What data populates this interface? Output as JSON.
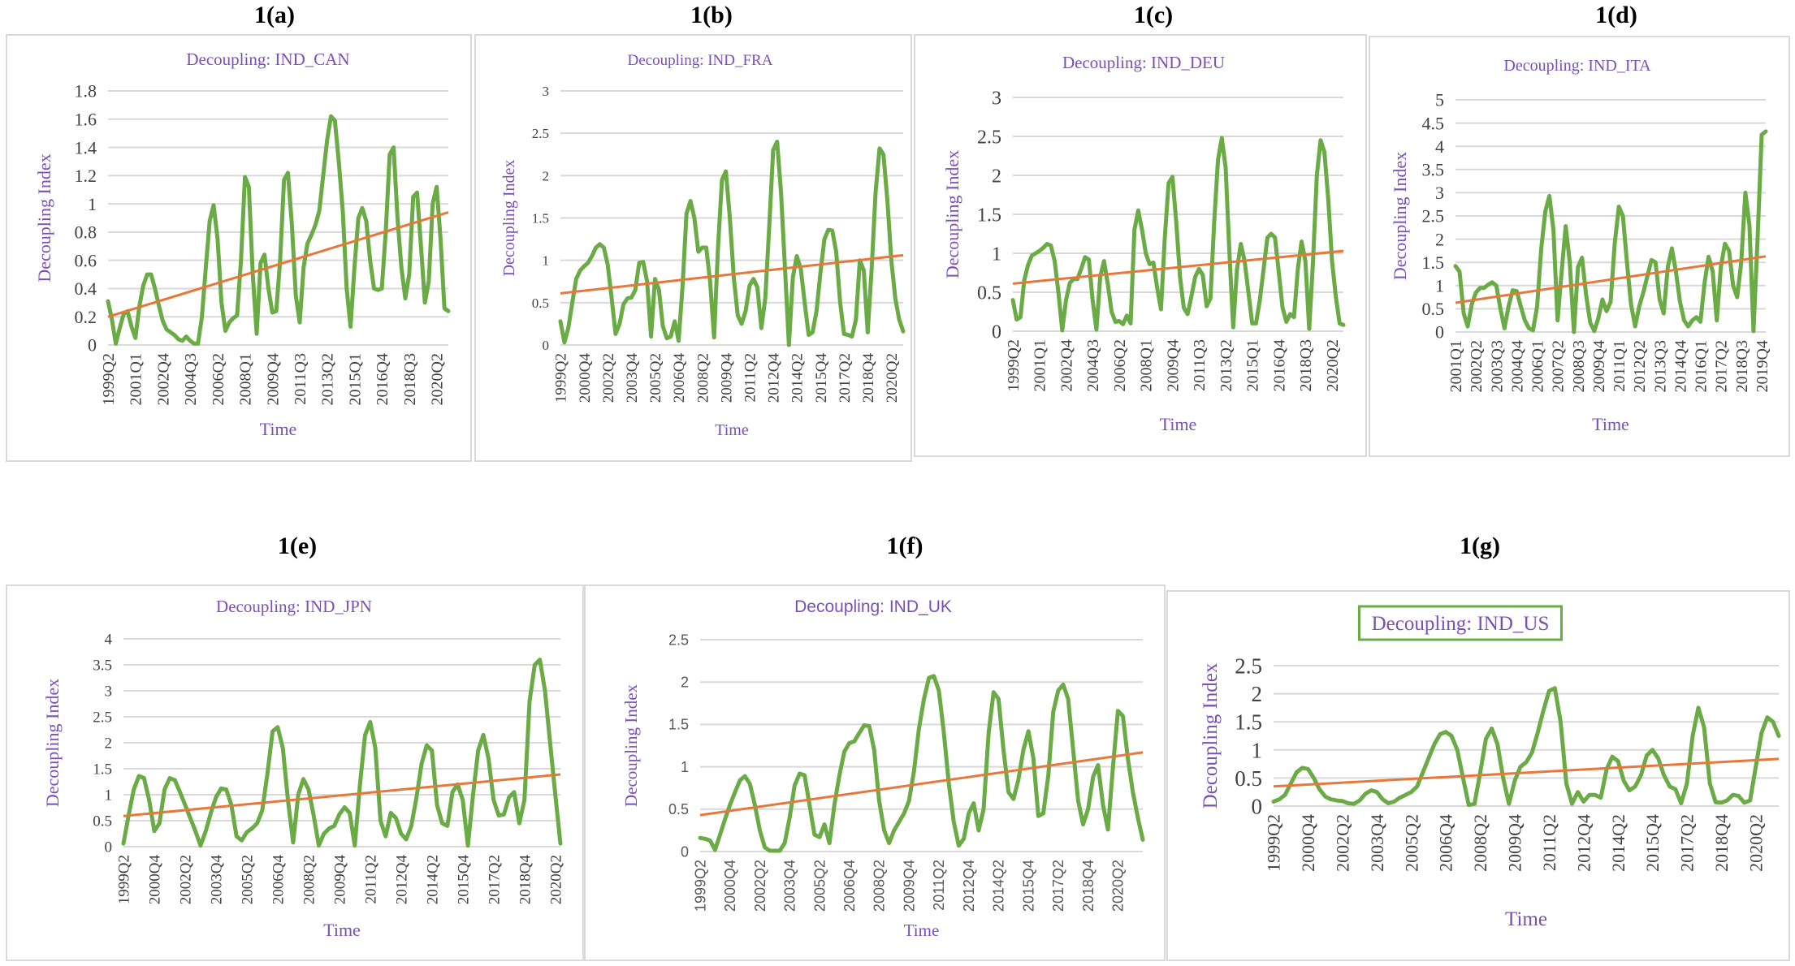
{
  "figure": {
    "panel_labels": [
      "1(a)",
      "1(b)",
      "1(c)",
      "1(d)",
      "1(e)",
      "1(f)",
      "1(g)"
    ]
  },
  "colors": {
    "series": "#6aab45",
    "trend": "#e8773a",
    "title": "#7b4fb7",
    "grid": "#d9d9d9",
    "title_box_border": "#6aab45"
  },
  "chart_data": [
    {
      "id": "a",
      "panel_label": "1(a)",
      "type": "line",
      "title": "Decoupling: IND_CAN",
      "xlabel": "Time",
      "ylabel": "Decoupling Index",
      "ylim": [
        0,
        1.8
      ],
      "yticks": [
        "0",
        "0.2",
        "0.4",
        "0.6",
        "0.8",
        "1",
        "1.2",
        "1.4",
        "1.6",
        "1.8"
      ],
      "ytick_values": [
        0,
        0.2,
        0.4,
        0.6,
        0.8,
        1.0,
        1.2,
        1.4,
        1.6,
        1.8
      ],
      "x_start": "1999Q2",
      "xtick_labels": [
        "1999Q2",
        "2001Q1",
        "2002Q4",
        "2004Q3",
        "2006Q2",
        "2008Q1",
        "2009Q4",
        "2011Q3",
        "2013Q2",
        "2015Q1",
        "2016Q4",
        "2018Q3",
        "2020Q2"
      ],
      "xtick_step": 7,
      "grid": true,
      "trend": [
        0.2,
        0.94
      ],
      "series": [
        {
          "name": "Decoupling: IND_CAN",
          "values": [
            0.31,
            0.18,
            0.01,
            0.12,
            0.22,
            0.24,
            0.13,
            0.05,
            0.27,
            0.42,
            0.5,
            0.5,
            0.4,
            0.28,
            0.17,
            0.11,
            0.09,
            0.07,
            0.04,
            0.03,
            0.06,
            0.03,
            0.01,
            0.01,
            0.2,
            0.55,
            0.88,
            0.99,
            0.75,
            0.3,
            0.1,
            0.16,
            0.19,
            0.21,
            0.6,
            1.19,
            1.12,
            0.5,
            0.08,
            0.58,
            0.64,
            0.4,
            0.23,
            0.24,
            0.6,
            1.17,
            1.22,
            0.85,
            0.35,
            0.16,
            0.55,
            0.72,
            0.78,
            0.85,
            0.95,
            1.2,
            1.45,
            1.62,
            1.59,
            1.3,
            0.95,
            0.4,
            0.13,
            0.55,
            0.9,
            0.97,
            0.88,
            0.6,
            0.4,
            0.39,
            0.4,
            0.8,
            1.35,
            1.4,
            0.9,
            0.55,
            0.33,
            0.5,
            1.05,
            1.08,
            0.7,
            0.3,
            0.45,
            1.0,
            1.12,
            0.75,
            0.26,
            0.24
          ]
        }
      ]
    },
    {
      "id": "b",
      "panel_label": "1(b)",
      "type": "line",
      "title": "Decoupling: IND_FRA",
      "xlabel": "Time",
      "ylabel": "Decoupling Index",
      "ylim": [
        0,
        3
      ],
      "yticks": [
        "0",
        "0.5",
        "1",
        "1.5",
        "2",
        "2.5",
        "3"
      ],
      "ytick_values": [
        0,
        0.5,
        1.0,
        1.5,
        2.0,
        2.5,
        3.0
      ],
      "x_start": "1999Q2",
      "xtick_labels": [
        "1999Q2",
        "2000Q4",
        "2002Q2",
        "2003Q4",
        "2005Q2",
        "2006Q4",
        "2008Q2",
        "2009Q4",
        "2011Q2",
        "2012Q4",
        "2014Q2",
        "2015Q4",
        "2017Q2",
        "2018Q4",
        "2020Q2"
      ],
      "xtick_step": 6,
      "grid": true,
      "trend": [
        0.61,
        1.06
      ],
      "series": [
        {
          "name": "Decoupling: IND_FRA",
          "values": [
            0.28,
            0.03,
            0.2,
            0.5,
            0.78,
            0.88,
            0.93,
            0.97,
            1.05,
            1.15,
            1.19,
            1.15,
            0.95,
            0.55,
            0.13,
            0.25,
            0.48,
            0.55,
            0.56,
            0.65,
            0.97,
            0.98,
            0.75,
            0.1,
            0.78,
            0.65,
            0.22,
            0.08,
            0.1,
            0.28,
            0.05,
            0.7,
            1.55,
            1.7,
            1.5,
            1.1,
            1.15,
            1.15,
            0.75,
            0.09,
            1.15,
            1.95,
            2.05,
            1.5,
            0.8,
            0.35,
            0.25,
            0.4,
            0.7,
            0.78,
            0.68,
            0.2,
            0.55,
            1.4,
            2.3,
            2.4,
            1.8,
            0.9,
            -0.02,
            0.8,
            1.05,
            0.9,
            0.5,
            0.12,
            0.15,
            0.4,
            0.85,
            1.25,
            1.36,
            1.35,
            1.1,
            0.5,
            0.13,
            0.12,
            0.1,
            0.3,
            1.0,
            0.88,
            0.15,
            0.9,
            1.8,
            2.32,
            2.25,
            1.7,
            1.0,
            0.55,
            0.3,
            0.16
          ]
        }
      ]
    },
    {
      "id": "c",
      "panel_label": "1(c)",
      "type": "line",
      "title": "Decoupling: IND_DEU",
      "xlabel": "Time",
      "ylabel": "Decoupling Index",
      "ylim": [
        0,
        3
      ],
      "yticks": [
        "0",
        "0.5",
        "1",
        "1.5",
        "2",
        "2.5",
        "3"
      ],
      "ytick_values": [
        0,
        0.5,
        1.0,
        1.5,
        2.0,
        2.5,
        3.0
      ],
      "x_start": "1999Q2",
      "xtick_labels": [
        "1999Q2",
        "2001Q1",
        "2002Q4",
        "2004Q3",
        "2006Q2",
        "2008Q1",
        "2009Q4",
        "2011Q3",
        "2013Q2",
        "2015Q1",
        "2016Q4",
        "2018Q3",
        "2020Q2"
      ],
      "xtick_step": 7,
      "grid": true,
      "trend": [
        0.61,
        1.03
      ],
      "series": [
        {
          "name": "Decoupling: IND_DEU",
          "values": [
            0.4,
            0.15,
            0.18,
            0.65,
            0.85,
            0.97,
            1.0,
            1.03,
            1.07,
            1.12,
            1.1,
            0.9,
            0.5,
            0.01,
            0.4,
            0.62,
            0.67,
            0.67,
            0.8,
            0.95,
            0.92,
            0.4,
            0.02,
            0.7,
            0.9,
            0.6,
            0.25,
            0.12,
            0.13,
            0.09,
            0.2,
            0.1,
            1.3,
            1.55,
            1.3,
            1.0,
            0.86,
            0.88,
            0.55,
            0.28,
            1.2,
            1.9,
            1.98,
            1.4,
            0.7,
            0.3,
            0.22,
            0.45,
            0.7,
            0.8,
            0.72,
            0.32,
            0.42,
            1.4,
            2.2,
            2.48,
            2.1,
            1.0,
            0.05,
            0.8,
            1.12,
            0.9,
            0.5,
            0.1,
            0.1,
            0.4,
            0.8,
            1.2,
            1.25,
            1.2,
            0.75,
            0.3,
            0.12,
            0.22,
            0.18,
            0.8,
            1.15,
            0.9,
            0.03,
            0.9,
            2.0,
            2.45,
            2.3,
            1.7,
            0.9,
            0.45,
            0.1,
            0.08
          ]
        }
      ]
    },
    {
      "id": "d",
      "panel_label": "1(d)",
      "type": "line",
      "title": "Decoupling: IND_ITA",
      "xlabel": "Time",
      "ylabel": "Decoupling Index",
      "ylim": [
        0,
        5
      ],
      "yticks": [
        "0",
        "0.5",
        "1",
        "1.5",
        "2",
        "2.5",
        "3",
        "3.5",
        "4",
        "4.5",
        "5"
      ],
      "ytick_values": [
        0,
        0.5,
        1.0,
        1.5,
        2.0,
        2.5,
        3.0,
        3.5,
        4.0,
        4.5,
        5.0
      ],
      "x_start": "2001Q1",
      "xtick_labels": [
        "2001Q1",
        "2002Q2",
        "2003Q3",
        "2004Q4",
        "2006Q1",
        "2007Q2",
        "2008Q3",
        "2009Q4",
        "2011Q1",
        "2012Q2",
        "2013Q3",
        "2014Q4",
        "2016Q1",
        "2017Q2",
        "2018Q3",
        "2019Q4"
      ],
      "xtick_step": 5,
      "grid": true,
      "trend": [
        0.63,
        1.63
      ],
      "series": [
        {
          "name": "Decoupling: IND_ITA",
          "values": [
            1.42,
            1.3,
            0.4,
            0.12,
            0.6,
            0.85,
            0.95,
            0.95,
            1.02,
            1.07,
            1.0,
            0.5,
            0.08,
            0.55,
            0.9,
            0.88,
            0.55,
            0.25,
            0.08,
            0.04,
            0.55,
            1.8,
            2.6,
            2.93,
            2.2,
            0.25,
            1.3,
            2.28,
            1.5,
            0.0,
            1.4,
            1.6,
            0.8,
            0.2,
            0.02,
            0.3,
            0.7,
            0.45,
            0.65,
            1.9,
            2.7,
            2.5,
            1.5,
            0.6,
            0.12,
            0.55,
            0.85,
            1.2,
            1.55,
            1.5,
            0.7,
            0.4,
            1.4,
            1.8,
            1.3,
            0.65,
            0.25,
            0.12,
            0.25,
            0.32,
            0.22,
            1.05,
            1.62,
            1.3,
            0.25,
            1.4,
            1.9,
            1.75,
            1.0,
            0.75,
            1.5,
            3.0,
            2.3,
            0.02,
            2.0,
            4.25,
            4.32
          ]
        }
      ]
    },
    {
      "id": "e",
      "panel_label": "1(e)",
      "type": "line",
      "title": "Decoupling: IND_JPN",
      "xlabel": "Time",
      "ylabel": "Decoupling Index",
      "ylim": [
        0,
        4
      ],
      "yticks": [
        "0",
        "0.5",
        "1",
        "1.5",
        "2",
        "2.5",
        "3",
        "3.5",
        "4"
      ],
      "ytick_values": [
        0,
        0.5,
        1.0,
        1.5,
        2.0,
        2.5,
        3.0,
        3.5,
        4.0
      ],
      "x_start": "1999Q2",
      "xtick_labels": [
        "1999Q2",
        "2000Q4",
        "2002Q2",
        "2003Q4",
        "2005Q2",
        "2006Q4",
        "2008Q2",
        "2009Q4",
        "2011Q2",
        "2012Q4",
        "2014Q2",
        "2015Q4",
        "2017Q2",
        "2018Q4",
        "2020Q2"
      ],
      "xtick_step": 6,
      "grid": true,
      "trend": [
        0.59,
        1.39
      ],
      "series": [
        {
          "name": "Decoupling: IND_JPN",
          "values": [
            0.06,
            0.6,
            1.1,
            1.36,
            1.32,
            0.9,
            0.3,
            0.45,
            1.1,
            1.32,
            1.28,
            1.05,
            0.8,
            0.55,
            0.3,
            0.02,
            0.3,
            0.65,
            0.95,
            1.12,
            1.1,
            0.8,
            0.2,
            0.12,
            0.28,
            0.35,
            0.45,
            0.7,
            1.4,
            2.22,
            2.3,
            1.9,
            0.9,
            0.08,
            1.0,
            1.3,
            1.1,
            0.6,
            0.02,
            0.25,
            0.35,
            0.4,
            0.62,
            0.76,
            0.65,
            0.02,
            1.2,
            2.15,
            2.4,
            1.9,
            0.5,
            0.2,
            0.65,
            0.55,
            0.25,
            0.14,
            0.4,
            0.95,
            1.6,
            1.95,
            1.85,
            0.8,
            0.45,
            0.4,
            1.05,
            1.2,
            0.9,
            0.02,
            1.0,
            1.85,
            2.15,
            1.7,
            0.9,
            0.6,
            0.62,
            0.95,
            1.05,
            0.45,
            0.9,
            2.8,
            3.5,
            3.6,
            3.0,
            2.0,
            1.0,
            0.06
          ]
        }
      ]
    },
    {
      "id": "f",
      "panel_label": "1(f)",
      "type": "line",
      "title": "Decoupling: IND_UK",
      "xlabel": "Time",
      "ylabel": "Decoupling Index",
      "ylim": [
        0,
        2.5
      ],
      "yticks": [
        "0",
        "0.5",
        "1",
        "1.5",
        "2",
        "2.5"
      ],
      "ytick_values": [
        0,
        0.5,
        1.0,
        1.5,
        2.0,
        2.5
      ],
      "x_start": "1999Q2",
      "xtick_labels": [
        "1999Q2",
        "2000Q4",
        "2002Q2",
        "2003Q4",
        "2005Q2",
        "2006Q4",
        "2008Q2",
        "2009Q4",
        "2011Q2",
        "2012Q4",
        "2014Q2",
        "2015Q4",
        "2017Q2",
        "2018Q4",
        "2020Q2"
      ],
      "xtick_step": 6,
      "grid": true,
      "trend": [
        0.43,
        1.17
      ],
      "series": [
        {
          "name": "Decoupling: IND_UK",
          "values": [
            0.16,
            0.15,
            0.13,
            0.02,
            0.2,
            0.38,
            0.55,
            0.7,
            0.84,
            0.89,
            0.8,
            0.55,
            0.25,
            0.05,
            0.01,
            0.01,
            0.01,
            0.1,
            0.4,
            0.78,
            0.92,
            0.9,
            0.55,
            0.2,
            0.17,
            0.32,
            0.1,
            0.55,
            0.9,
            1.18,
            1.28,
            1.3,
            1.4,
            1.49,
            1.48,
            1.2,
            0.6,
            0.25,
            0.1,
            0.25,
            0.35,
            0.45,
            0.6,
            0.95,
            1.45,
            1.8,
            2.05,
            2.07,
            1.9,
            1.4,
            0.8,
            0.35,
            0.07,
            0.15,
            0.45,
            0.57,
            0.25,
            0.5,
            1.4,
            1.88,
            1.8,
            1.2,
            0.7,
            0.62,
            0.85,
            1.2,
            1.42,
            1.1,
            0.42,
            0.45,
            0.9,
            1.65,
            1.9,
            1.97,
            1.8,
            1.2,
            0.6,
            0.32,
            0.5,
            0.88,
            1.02,
            0.55,
            0.26,
            1.0,
            1.66,
            1.6,
            1.1,
            0.7,
            0.4,
            0.14
          ]
        }
      ]
    },
    {
      "id": "g",
      "panel_label": "1(g)",
      "type": "line",
      "title": "Decoupling: IND_US",
      "title_boxed": true,
      "xlabel": "Time",
      "ylabel": "Decoupling Index",
      "ylim": [
        0,
        2.5
      ],
      "yticks": [
        "0",
        "0.5",
        "1",
        "1.5",
        "2",
        "2.5"
      ],
      "ytick_values": [
        0,
        0.5,
        1.0,
        1.5,
        2.0,
        2.5
      ],
      "x_start": "1999Q2",
      "xtick_labels": [
        "1999Q2",
        "2000Q4",
        "2002Q2",
        "2003Q4",
        "2005Q2",
        "2006Q4",
        "2008Q2",
        "2009Q4",
        "2011Q2",
        "2012Q4",
        "2014Q2",
        "2015Q4",
        "2017Q2",
        "2018Q4",
        "2020Q2"
      ],
      "xtick_step": 6,
      "grid": true,
      "trend": [
        0.35,
        0.84
      ],
      "series": [
        {
          "name": "Decoupling: IND_US",
          "values": [
            0.08,
            0.12,
            0.2,
            0.4,
            0.6,
            0.68,
            0.66,
            0.5,
            0.3,
            0.17,
            0.12,
            0.1,
            0.09,
            0.05,
            0.04,
            0.1,
            0.22,
            0.28,
            0.25,
            0.12,
            0.05,
            0.08,
            0.15,
            0.2,
            0.25,
            0.35,
            0.6,
            0.85,
            1.1,
            1.28,
            1.32,
            1.25,
            1.0,
            0.5,
            0.02,
            0.04,
            0.6,
            1.2,
            1.38,
            1.1,
            0.5,
            0.04,
            0.45,
            0.7,
            0.78,
            0.95,
            1.3,
            1.7,
            2.05,
            2.1,
            1.5,
            0.4,
            0.04,
            0.25,
            0.08,
            0.2,
            0.2,
            0.15,
            0.65,
            0.88,
            0.8,
            0.45,
            0.28,
            0.35,
            0.55,
            0.9,
            1.0,
            0.85,
            0.55,
            0.35,
            0.3,
            0.05,
            0.4,
            1.25,
            1.75,
            1.4,
            0.4,
            0.07,
            0.06,
            0.1,
            0.2,
            0.18,
            0.06,
            0.1,
            0.7,
            1.3,
            1.58,
            1.5,
            1.25
          ]
        }
      ]
    }
  ]
}
